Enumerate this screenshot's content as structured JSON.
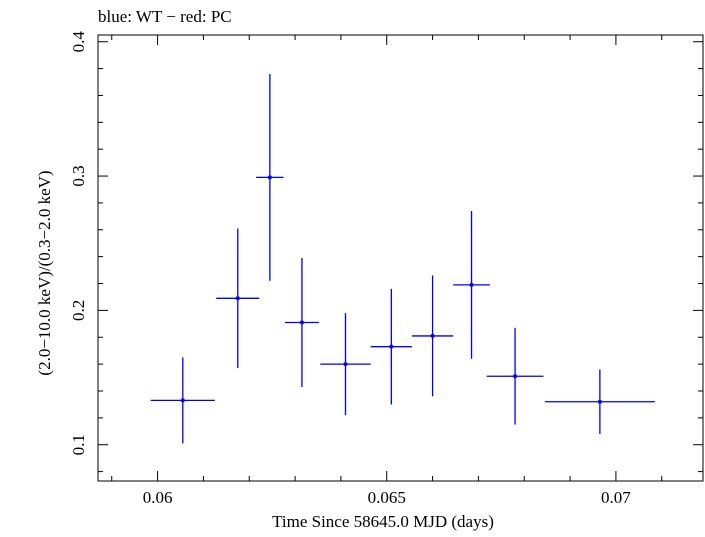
{
  "chart_data": {
    "type": "scatter",
    "title": "blue: WT − red: PC",
    "xlabel": "Time Since 58645.0 MJD (days)",
    "ylabel": "(2.0−10.0 keV)/(0.3−2.0 keV)",
    "xlim": [
      0.0587,
      0.0719
    ],
    "ylim": [
      0.073,
      0.405
    ],
    "x_ticks": [
      0.06,
      0.065,
      0.07
    ],
    "x_tick_labels": [
      "0.06",
      "0.065",
      "0.07"
    ],
    "y_ticks": [
      0.1,
      0.2,
      0.3,
      0.4
    ],
    "y_tick_labels": [
      "0.1",
      "0.2",
      "0.3",
      "0.4"
    ],
    "x_minor_step": 0.001,
    "y_minor_step": 0.02,
    "grid": false,
    "series": [
      {
        "color": "#0000ff",
        "points": [
          {
            "x": 0.06055,
            "xerr": 0.0007,
            "y": 0.133,
            "yerr_lo": 0.032,
            "yerr_hi": 0.032
          },
          {
            "x": 0.06175,
            "xerr": 0.00047,
            "y": 0.209,
            "yerr_lo": 0.052,
            "yerr_hi": 0.052
          },
          {
            "x": 0.06245,
            "xerr": 0.0003,
            "y": 0.299,
            "yerr_lo": 0.077,
            "yerr_hi": 0.077
          },
          {
            "x": 0.06315,
            "xerr": 0.00037,
            "y": 0.191,
            "yerr_lo": 0.048,
            "yerr_hi": 0.048
          },
          {
            "x": 0.0641,
            "xerr": 0.00055,
            "y": 0.16,
            "yerr_lo": 0.038,
            "yerr_hi": 0.038
          },
          {
            "x": 0.0651,
            "xerr": 0.00045,
            "y": 0.173,
            "yerr_lo": 0.043,
            "yerr_hi": 0.043
          },
          {
            "x": 0.066,
            "xerr": 0.00045,
            "y": 0.181,
            "yerr_lo": 0.045,
            "yerr_hi": 0.045
          },
          {
            "x": 0.06685,
            "xerr": 0.0004,
            "y": 0.219,
            "yerr_lo": 0.055,
            "yerr_hi": 0.055
          },
          {
            "x": 0.0678,
            "xerr": 0.00062,
            "y": 0.151,
            "yerr_lo": 0.036,
            "yerr_hi": 0.036
          },
          {
            "x": 0.06965,
            "xerr": 0.0012,
            "y": 0.132,
            "yerr_lo": 0.024,
            "yerr_hi": 0.024
          }
        ]
      }
    ]
  }
}
